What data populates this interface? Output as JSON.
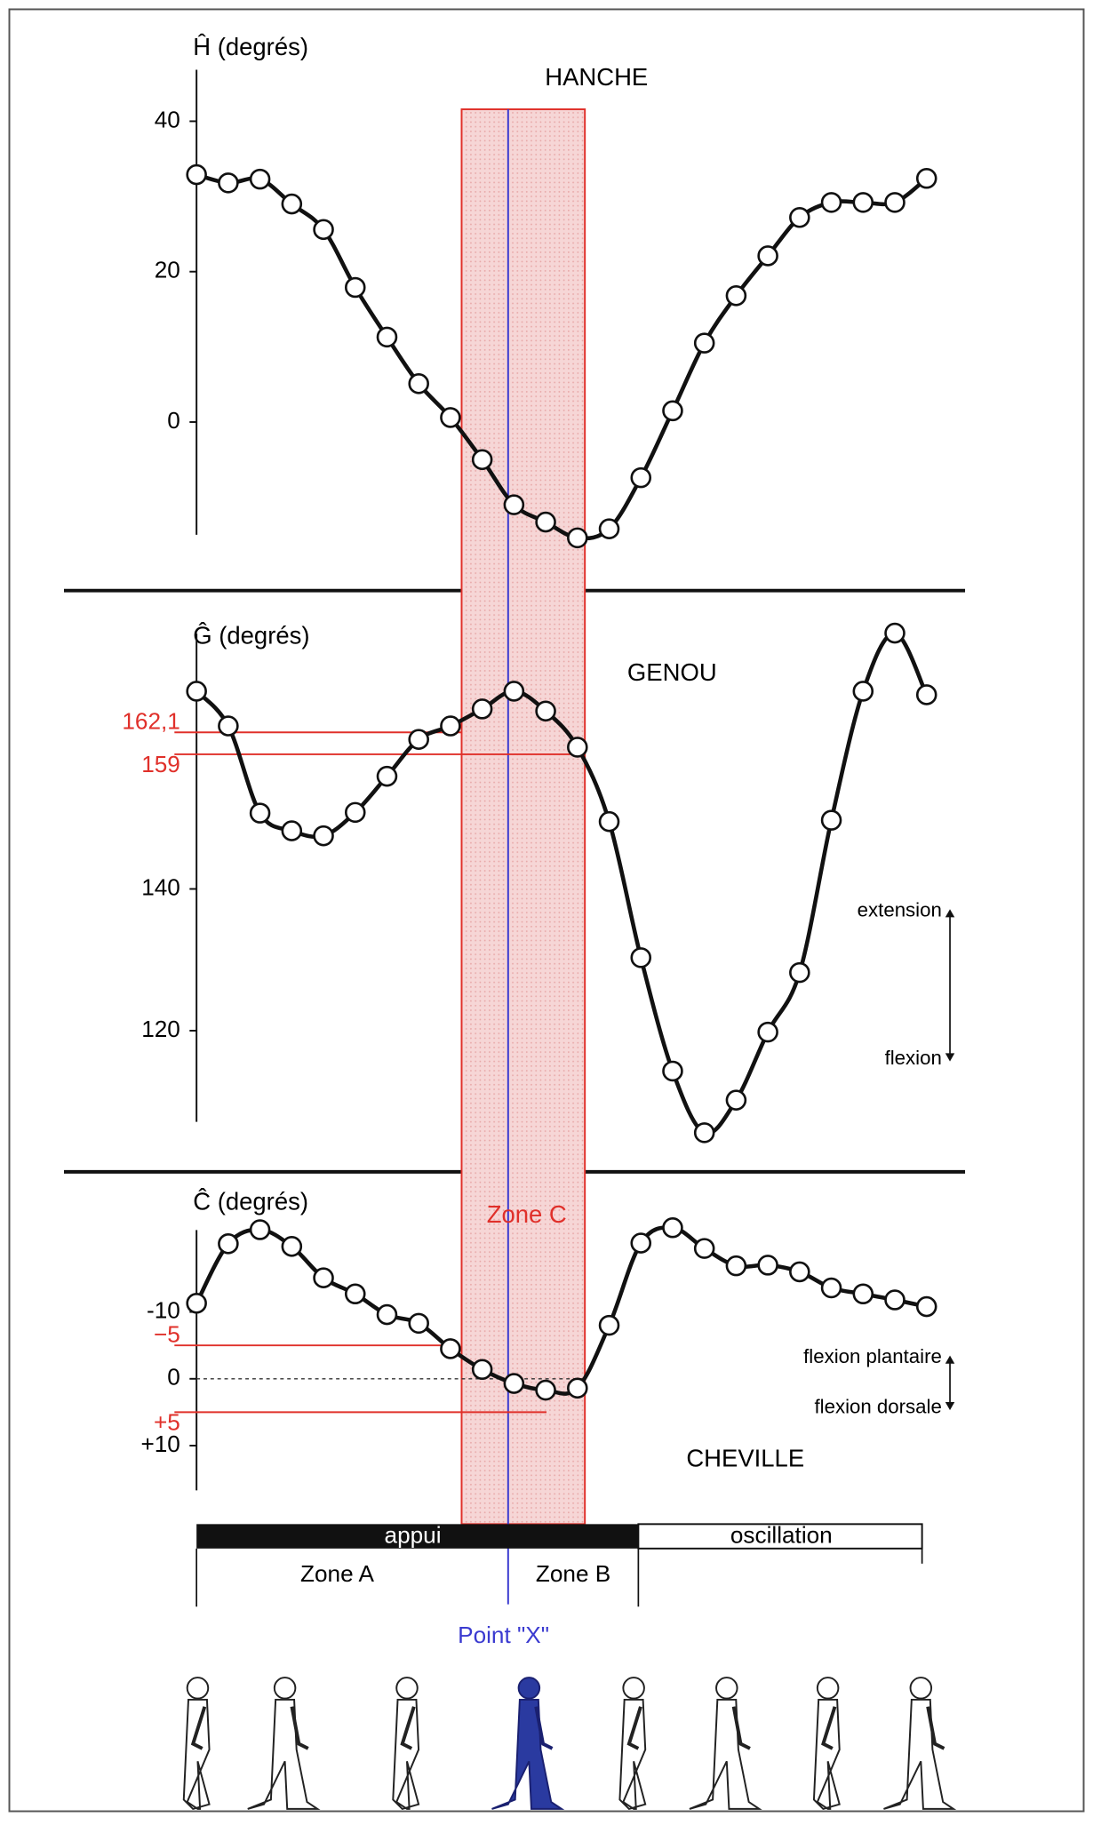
{
  "chart_data": [
    {
      "type": "line",
      "title": "HANCHE",
      "y_label": "Ĥ (degrés)",
      "color": "#111111",
      "ylim": [
        -17,
        47
      ],
      "yticks": [
        0,
        20,
        40
      ],
      "grid": false,
      "values": [
        32.9,
        31.8,
        32.3,
        29,
        25.6,
        17.9,
        11.3,
        5.1,
        0.6,
        -5,
        -11,
        -13.3,
        -15.4,
        -14.2,
        -7.4,
        1.5,
        10.5,
        16.8,
        22.1,
        27.2,
        29.2,
        29.2,
        29.2,
        32.4
      ]
    },
    {
      "type": "line",
      "title": "GENOU",
      "y_label": "Ĝ (degrés)",
      "color": "#111111",
      "ylim": [
        105,
        178
      ],
      "yticks": [
        120,
        140
      ],
      "grid": false,
      "ref_ticks": [
        {
          "value": 162.1,
          "label": "162,1"
        },
        159
      ],
      "ref_color": "#e0302a",
      "annotations": [
        "extension",
        "flexion"
      ],
      "values": [
        167.9,
        163,
        150.7,
        148.2,
        147.5,
        150.8,
        155.9,
        161.1,
        163,
        165.4,
        167.9,
        165.1,
        160,
        149.5,
        130.3,
        114.3,
        105.6,
        110.2,
        119.8,
        128.2,
        149.7,
        167.9,
        176.1,
        167.4
      ]
    },
    {
      "type": "line",
      "title": "CHEVILLE",
      "y_label": "Ĉ (degrés)",
      "color": "#111111",
      "ylim": [
        -24,
        16
      ],
      "y_inverted": true,
      "yticks": [
        -10,
        0,
        {
          "value": 10,
          "label": "+10"
        }
      ],
      "grid": false,
      "zero_line": true,
      "ref_ticks": [
        {
          "value": -5,
          "label": "−5"
        },
        {
          "value": 5,
          "label": "+5"
        }
      ],
      "ref_color": "#e0302a",
      "annotations": [
        "flexion plantaire",
        "flexion dorsale"
      ],
      "values": [
        -11.3,
        -20.2,
        -22.3,
        -19.8,
        -15.1,
        -12.7,
        -9.6,
        -8.3,
        -4.5,
        -1.4,
        0.7,
        1.7,
        1.4,
        -8,
        -20.3,
        -22.6,
        -19.5,
        -16.9,
        -17,
        -16,
        -13.6,
        -12.7,
        -11.8,
        -10.8
      ]
    }
  ],
  "overlay": {
    "zone_c": "Zone C",
    "phases": [
      "appui",
      "oscillation"
    ],
    "sub_zones": [
      "Zone A",
      "Zone B"
    ],
    "point": "Point \"X\""
  }
}
